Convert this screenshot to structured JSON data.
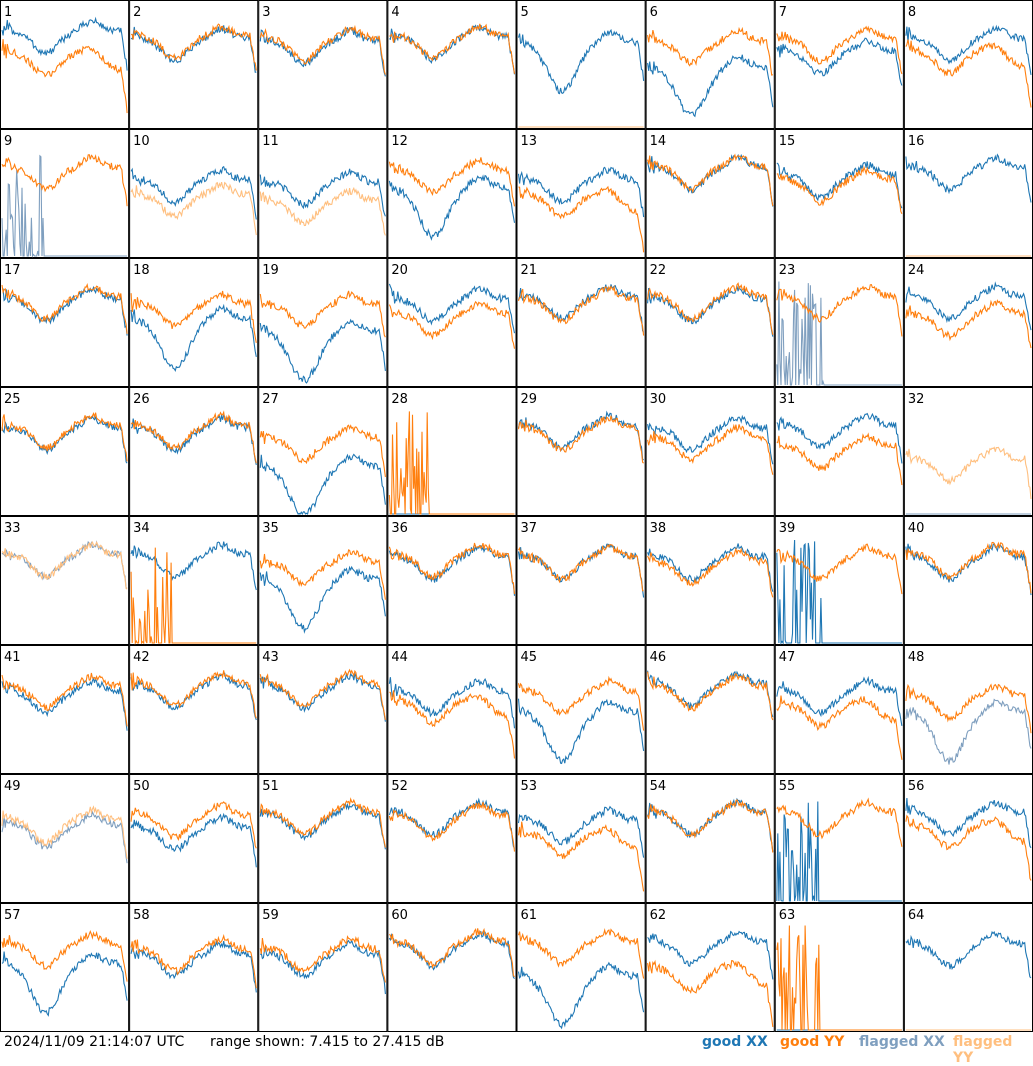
{
  "timestamp": "2024/11/09 21:14:07 UTC",
  "range_text": "range shown: 7.415 to 27.415 dB",
  "legend": {
    "good_xx": {
      "prefix": "good ",
      "pol": "XX",
      "color": "#1f77b4"
    },
    "good_yy": {
      "prefix": "good ",
      "pol": "YY",
      "color": "#ff7f0e"
    },
    "flagged_xx": {
      "prefix": "flagged ",
      "pol": "XX",
      "color": "#7f9fbf"
    },
    "flagged_yy": {
      "prefix": "flagged ",
      "pol": "YY",
      "color": "#ffbf7f"
    }
  },
  "chart_data": {
    "type": "line",
    "grid": "8x8 small multiples, one panel per tile (1-64)",
    "ylim": [
      7.415,
      27.415
    ],
    "yunit": "dB",
    "series_keys": [
      "good XX",
      "good YY",
      "flagged XX",
      "flagged YY"
    ],
    "shapes": [
      "standard",
      "dip",
      "droop",
      "spikes",
      "zero"
    ],
    "tiles": [
      {
        "id": 1,
        "xx": {
          "s": "standard",
          "f": false,
          "l": 0.78
        },
        "yy": {
          "s": "droop",
          "f": false,
          "l": 0.6
        }
      },
      {
        "id": 2,
        "xx": {
          "s": "standard",
          "f": false,
          "l": 0.72
        },
        "yy": {
          "s": "standard",
          "f": false,
          "l": 0.74
        }
      },
      {
        "id": 3,
        "xx": {
          "s": "standard",
          "f": false,
          "l": 0.7
        },
        "yy": {
          "s": "standard",
          "f": false,
          "l": 0.72
        }
      },
      {
        "id": 4,
        "xx": {
          "s": "standard",
          "f": false,
          "l": 0.73
        },
        "yy": {
          "s": "standard",
          "f": false,
          "l": 0.74
        }
      },
      {
        "id": 5,
        "xx": {
          "s": "dip",
          "f": false,
          "l": 0.75
        },
        "yy": {
          "s": "zero",
          "f": true,
          "l": 0.0
        }
      },
      {
        "id": 6,
        "xx": {
          "s": "dip",
          "f": false,
          "l": 0.55
        },
        "yy": {
          "s": "standard",
          "f": false,
          "l": 0.7
        }
      },
      {
        "id": 7,
        "xx": {
          "s": "standard",
          "f": false,
          "l": 0.62
        },
        "yy": {
          "s": "standard",
          "f": false,
          "l": 0.72
        }
      },
      {
        "id": 8,
        "xx": {
          "s": "standard",
          "f": false,
          "l": 0.72
        },
        "yy": {
          "s": "droop",
          "f": false,
          "l": 0.62
        }
      },
      {
        "id": 9,
        "xx": {
          "s": "spikes",
          "f": true,
          "l": 0.0
        },
        "yy": {
          "s": "standard",
          "f": false,
          "l": 0.72
        }
      },
      {
        "id": 10,
        "xx": {
          "s": "standard",
          "f": false,
          "l": 0.62
        },
        "yy": {
          "s": "standard",
          "f": true,
          "l": 0.5
        }
      },
      {
        "id": 11,
        "xx": {
          "s": "standard",
          "f": false,
          "l": 0.6
        },
        "yy": {
          "s": "standard",
          "f": true,
          "l": 0.45
        }
      },
      {
        "id": 12,
        "xx": {
          "s": "dip",
          "f": false,
          "l": 0.62
        },
        "yy": {
          "s": "standard",
          "f": false,
          "l": 0.7
        }
      },
      {
        "id": 13,
        "xx": {
          "s": "standard",
          "f": false,
          "l": 0.62
        },
        "yy": {
          "s": "droop",
          "f": false,
          "l": 0.5
        }
      },
      {
        "id": 14,
        "xx": {
          "s": "standard",
          "f": false,
          "l": 0.72
        },
        "yy": {
          "s": "standard",
          "f": false,
          "l": 0.73
        }
      },
      {
        "id": 15,
        "xx": {
          "s": "standard",
          "f": false,
          "l": 0.66
        },
        "yy": {
          "s": "standard",
          "f": false,
          "l": 0.62
        }
      },
      {
        "id": 16,
        "xx": {
          "s": "standard",
          "f": false,
          "l": 0.72
        },
        "yy": {
          "s": "zero",
          "f": true,
          "l": 0.0
        }
      },
      {
        "id": 17,
        "xx": {
          "s": "standard",
          "f": false,
          "l": 0.7
        },
        "yy": {
          "s": "standard",
          "f": false,
          "l": 0.72
        }
      },
      {
        "id": 18,
        "xx": {
          "s": "dip",
          "f": false,
          "l": 0.6
        },
        "yy": {
          "s": "standard",
          "f": false,
          "l": 0.66
        }
      },
      {
        "id": 19,
        "xx": {
          "s": "dip",
          "f": false,
          "l": 0.5
        },
        "yy": {
          "s": "standard",
          "f": false,
          "l": 0.66
        }
      },
      {
        "id": 20,
        "xx": {
          "s": "standard",
          "f": false,
          "l": 0.7
        },
        "yy": {
          "s": "standard",
          "f": false,
          "l": 0.58
        }
      },
      {
        "id": 21,
        "xx": {
          "s": "standard",
          "f": false,
          "l": 0.72
        },
        "yy": {
          "s": "standard",
          "f": false,
          "l": 0.7
        }
      },
      {
        "id": 22,
        "xx": {
          "s": "standard",
          "f": false,
          "l": 0.7
        },
        "yy": {
          "s": "standard",
          "f": false,
          "l": 0.72
        }
      },
      {
        "id": 23,
        "xx": {
          "s": "spikes",
          "f": true,
          "l": 0.0
        },
        "yy": {
          "s": "standard",
          "f": false,
          "l": 0.72
        }
      },
      {
        "id": 24,
        "xx": {
          "s": "standard",
          "f": false,
          "l": 0.72
        },
        "yy": {
          "s": "standard",
          "f": false,
          "l": 0.58
        }
      },
      {
        "id": 25,
        "xx": {
          "s": "standard",
          "f": false,
          "l": 0.7
        },
        "yy": {
          "s": "standard",
          "f": false,
          "l": 0.72
        }
      },
      {
        "id": 26,
        "xx": {
          "s": "standard",
          "f": false,
          "l": 0.7
        },
        "yy": {
          "s": "standard",
          "f": false,
          "l": 0.72
        }
      },
      {
        "id": 27,
        "xx": {
          "s": "dip",
          "f": false,
          "l": 0.45
        },
        "yy": {
          "s": "standard",
          "f": false,
          "l": 0.62
        }
      },
      {
        "id": 28,
        "xx": {
          "s": "zero",
          "f": false,
          "l": 0.0
        },
        "yy": {
          "s": "spikes",
          "f": false,
          "l": 0.0
        }
      },
      {
        "id": 29,
        "xx": {
          "s": "standard",
          "f": false,
          "l": 0.72
        },
        "yy": {
          "s": "standard",
          "f": false,
          "l": 0.7
        }
      },
      {
        "id": 30,
        "xx": {
          "s": "standard",
          "f": false,
          "l": 0.7
        },
        "yy": {
          "s": "standard",
          "f": false,
          "l": 0.62
        }
      },
      {
        "id": 31,
        "xx": {
          "s": "standard",
          "f": false,
          "l": 0.72
        },
        "yy": {
          "s": "standard",
          "f": false,
          "l": 0.55
        }
      },
      {
        "id": 32,
        "xx": {
          "s": "zero",
          "f": true,
          "l": 0.0
        },
        "yy": {
          "s": "standard",
          "f": true,
          "l": 0.45
        }
      },
      {
        "id": 33,
        "xx": {
          "s": "standard",
          "f": true,
          "l": 0.72
        },
        "yy": {
          "s": "standard",
          "f": true,
          "l": 0.72
        }
      },
      {
        "id": 34,
        "xx": {
          "s": "standard",
          "f": false,
          "l": 0.72
        },
        "yy": {
          "s": "spikes",
          "f": false,
          "l": 0.0
        }
      },
      {
        "id": 35,
        "xx": {
          "s": "dip",
          "f": false,
          "l": 0.58
        },
        "yy": {
          "s": "standard",
          "f": false,
          "l": 0.66
        }
      },
      {
        "id": 36,
        "xx": {
          "s": "standard",
          "f": false,
          "l": 0.7
        },
        "yy": {
          "s": "standard",
          "f": false,
          "l": 0.72
        }
      },
      {
        "id": 37,
        "xx": {
          "s": "standard",
          "f": false,
          "l": 0.7
        },
        "yy": {
          "s": "standard",
          "f": false,
          "l": 0.7
        }
      },
      {
        "id": 38,
        "xx": {
          "s": "standard",
          "f": false,
          "l": 0.7
        },
        "yy": {
          "s": "standard",
          "f": false,
          "l": 0.66
        }
      },
      {
        "id": 39,
        "xx": {
          "s": "spikes",
          "f": false,
          "l": 0.0
        },
        "yy": {
          "s": "standard",
          "f": false,
          "l": 0.7
        }
      },
      {
        "id": 40,
        "xx": {
          "s": "standard",
          "f": false,
          "l": 0.7
        },
        "yy": {
          "s": "standard",
          "f": false,
          "l": 0.72
        }
      },
      {
        "id": 41,
        "xx": {
          "s": "standard",
          "f": false,
          "l": 0.66
        },
        "yy": {
          "s": "standard",
          "f": false,
          "l": 0.7
        }
      },
      {
        "id": 42,
        "xx": {
          "s": "standard",
          "f": false,
          "l": 0.7
        },
        "yy": {
          "s": "standard",
          "f": false,
          "l": 0.72
        }
      },
      {
        "id": 43,
        "xx": {
          "s": "standard",
          "f": false,
          "l": 0.7
        },
        "yy": {
          "s": "standard",
          "f": false,
          "l": 0.72
        }
      },
      {
        "id": 44,
        "xx": {
          "s": "standard",
          "f": false,
          "l": 0.66
        },
        "yy": {
          "s": "droop",
          "f": false,
          "l": 0.58
        }
      },
      {
        "id": 45,
        "xx": {
          "s": "dip",
          "f": false,
          "l": 0.55
        },
        "yy": {
          "s": "standard",
          "f": false,
          "l": 0.66
        }
      },
      {
        "id": 46,
        "xx": {
          "s": "standard",
          "f": false,
          "l": 0.72
        },
        "yy": {
          "s": "standard",
          "f": false,
          "l": 0.7
        }
      },
      {
        "id": 47,
        "xx": {
          "s": "standard",
          "f": false,
          "l": 0.66
        },
        "yy": {
          "s": "droop",
          "f": false,
          "l": 0.55
        }
      },
      {
        "id": 48,
        "xx": {
          "s": "dip",
          "f": true,
          "l": 0.55
        },
        "yy": {
          "s": "standard",
          "f": false,
          "l": 0.62
        }
      },
      {
        "id": 49,
        "xx": {
          "s": "standard",
          "f": true,
          "l": 0.62
        },
        "yy": {
          "s": "standard",
          "f": true,
          "l": 0.66
        }
      },
      {
        "id": 50,
        "xx": {
          "s": "standard",
          "f": false,
          "l": 0.6
        },
        "yy": {
          "s": "standard",
          "f": false,
          "l": 0.7
        }
      },
      {
        "id": 51,
        "xx": {
          "s": "standard",
          "f": false,
          "l": 0.7
        },
        "yy": {
          "s": "standard",
          "f": false,
          "l": 0.72
        }
      },
      {
        "id": 52,
        "xx": {
          "s": "standard",
          "f": false,
          "l": 0.72
        },
        "yy": {
          "s": "standard",
          "f": false,
          "l": 0.7
        }
      },
      {
        "id": 53,
        "xx": {
          "s": "standard",
          "f": false,
          "l": 0.66
        },
        "yy": {
          "s": "droop",
          "f": false,
          "l": 0.55
        }
      },
      {
        "id": 54,
        "xx": {
          "s": "standard",
          "f": false,
          "l": 0.72
        },
        "yy": {
          "s": "standard",
          "f": false,
          "l": 0.72
        }
      },
      {
        "id": 55,
        "xx": {
          "s": "spikes",
          "f": false,
          "l": 0.0
        },
        "yy": {
          "s": "standard",
          "f": false,
          "l": 0.72
        }
      },
      {
        "id": 56,
        "xx": {
          "s": "standard",
          "f": false,
          "l": 0.72
        },
        "yy": {
          "s": "droop",
          "f": false,
          "l": 0.62
        }
      },
      {
        "id": 57,
        "xx": {
          "s": "dip",
          "f": false,
          "l": 0.6
        },
        "yy": {
          "s": "standard",
          "f": false,
          "l": 0.7
        }
      },
      {
        "id": 58,
        "xx": {
          "s": "standard",
          "f": false,
          "l": 0.62
        },
        "yy": {
          "s": "standard",
          "f": false,
          "l": 0.66
        }
      },
      {
        "id": 59,
        "xx": {
          "s": "standard",
          "f": false,
          "l": 0.62
        },
        "yy": {
          "s": "standard",
          "f": false,
          "l": 0.66
        }
      },
      {
        "id": 60,
        "xx": {
          "s": "standard",
          "f": false,
          "l": 0.7
        },
        "yy": {
          "s": "standard",
          "f": false,
          "l": 0.72
        }
      },
      {
        "id": 61,
        "xx": {
          "s": "dip",
          "f": false,
          "l": 0.5
        },
        "yy": {
          "s": "standard",
          "f": false,
          "l": 0.72
        }
      },
      {
        "id": 62,
        "xx": {
          "s": "standard",
          "f": false,
          "l": 0.72
        },
        "yy": {
          "s": "droop",
          "f": false,
          "l": 0.5
        }
      },
      {
        "id": 63,
        "xx": {
          "s": "zero",
          "f": false,
          "l": 0.0
        },
        "yy": {
          "s": "spikes",
          "f": false,
          "l": 0.0
        }
      },
      {
        "id": 64,
        "xx": {
          "s": "standard",
          "f": false,
          "l": 0.7
        },
        "yy": {
          "s": "zero",
          "f": true,
          "l": 0.0
        }
      }
    ]
  }
}
